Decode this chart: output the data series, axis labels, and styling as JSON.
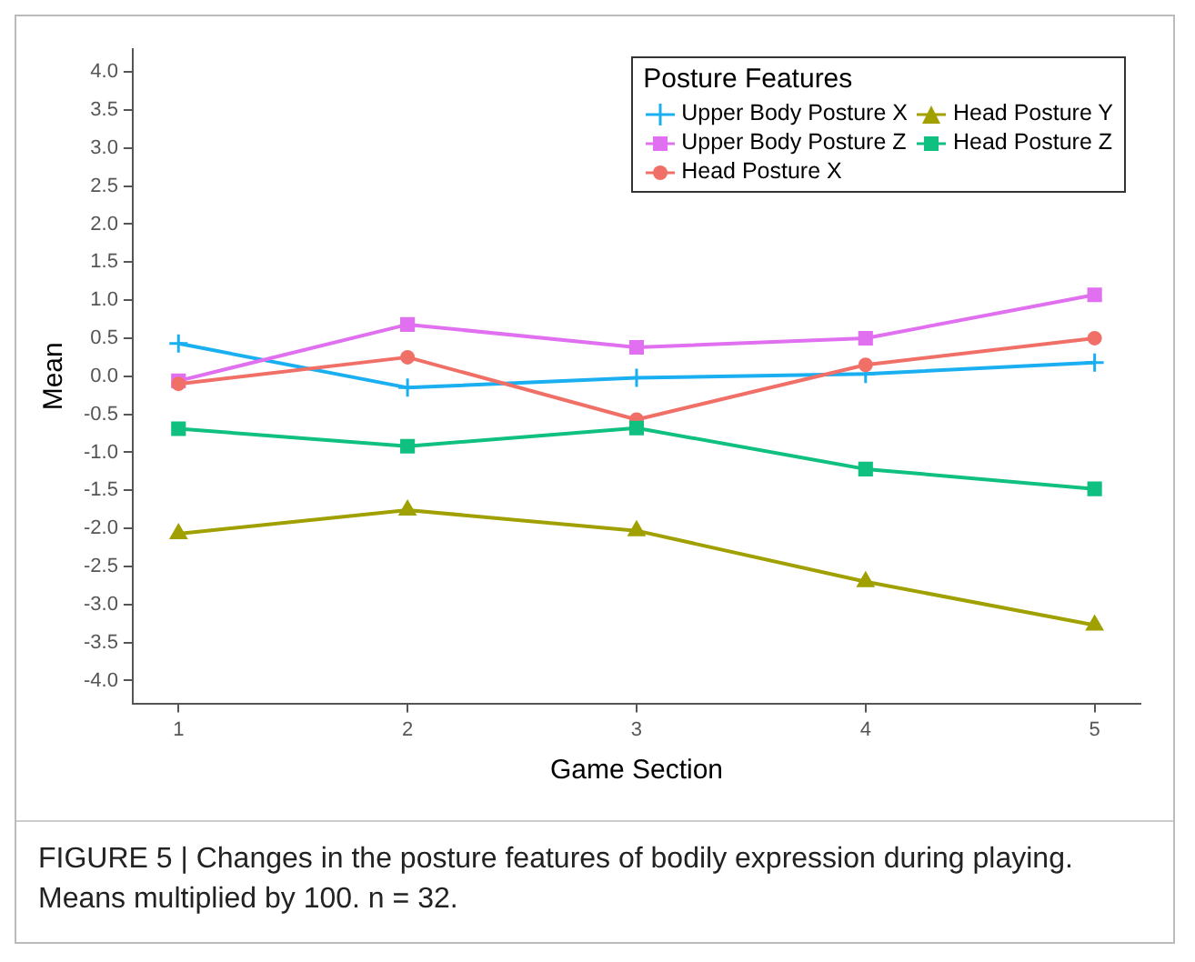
{
  "chart_data": {
    "type": "line",
    "xlabel": "Game Section",
    "ylabel": "Mean",
    "legend_title": "Posture Features",
    "legend": "top right",
    "grid": false,
    "x": [
      1,
      2,
      3,
      4,
      5
    ],
    "xlim": [
      0.8,
      5.2
    ],
    "xticks": [
      1,
      2,
      3,
      4,
      5
    ],
    "ylim": [
      -4.3,
      4.3
    ],
    "yticks": [
      {
        "value": -4,
        "label": "-4.0"
      },
      {
        "value": -3.5,
        "label": "-3.5"
      },
      {
        "value": -3,
        "label": "-3.0"
      },
      {
        "value": -2.5,
        "label": "-2.5"
      },
      {
        "value": -2,
        "label": "-2.0"
      },
      {
        "value": -1.5,
        "label": "-1.5"
      },
      {
        "value": -1,
        "label": "-1.0"
      },
      {
        "value": -0.5,
        "label": "-0.5"
      },
      {
        "value": 0,
        "label": "0.0"
      },
      {
        "value": 0.5,
        "label": "0.5"
      },
      {
        "value": 1,
        "label": "1.0"
      },
      {
        "value": 1.5,
        "label": "1.5"
      },
      {
        "value": 2,
        "label": "2.0"
      },
      {
        "value": 2.5,
        "label": "2.5"
      },
      {
        "value": 3,
        "label": "3.0"
      },
      {
        "value": 3.5,
        "label": "3.5"
      },
      {
        "value": 4,
        "label": "4.0"
      }
    ],
    "series": [
      {
        "name": "Upper Body Posture X",
        "color": "#1aaff0",
        "marker": "cross",
        "values": [
          0.43,
          -0.15,
          -0.02,
          0.03,
          0.18
        ]
      },
      {
        "name": "Upper Body Posture Z",
        "color": "#e070f0",
        "marker": "square",
        "values": [
          -0.06,
          0.68,
          0.38,
          0.5,
          1.07
        ]
      },
      {
        "name": "Head Posture X",
        "color": "#f07068",
        "marker": "circle",
        "values": [
          -0.1,
          0.25,
          -0.57,
          0.15,
          0.5
        ]
      },
      {
        "name": "Head Posture Y",
        "color": "#a0a000",
        "marker": "triangle",
        "values": [
          -2.07,
          -1.76,
          -2.03,
          -2.7,
          -3.27
        ]
      },
      {
        "name": "Head Posture Z",
        "color": "#10c080",
        "marker": "square",
        "values": [
          -0.69,
          -0.92,
          -0.68,
          -1.22,
          -1.48
        ]
      }
    ],
    "annotations": [
      "FIGURE 5 | Changes in the posture features of bodily expression during playing. Means multiplied by 100. n = 32."
    ]
  }
}
